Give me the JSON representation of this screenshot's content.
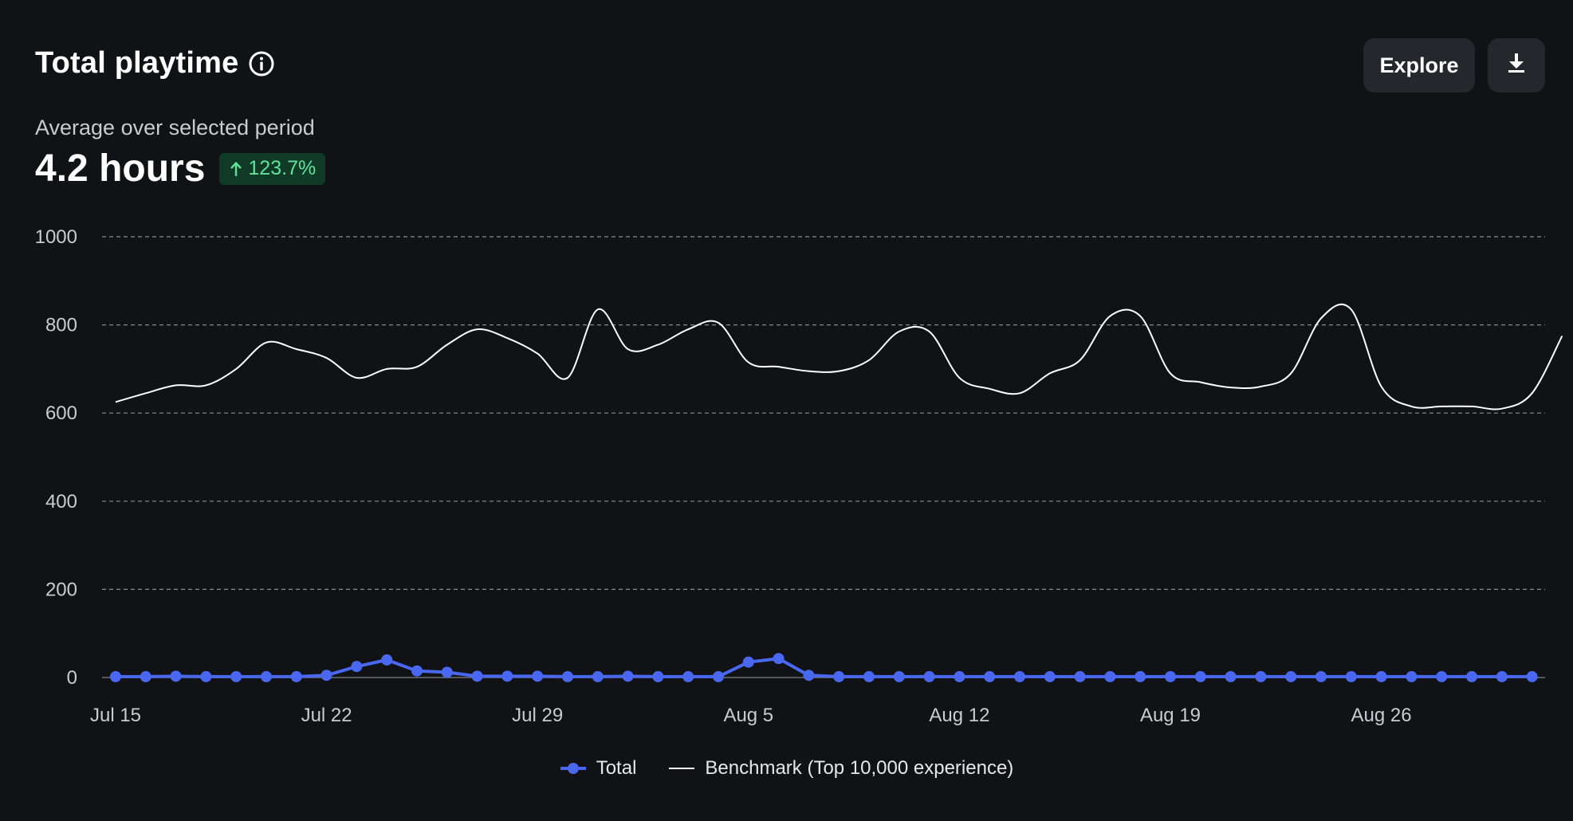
{
  "header": {
    "title": "Total playtime",
    "explore_label": "Explore",
    "subtitle": "Average over selected period",
    "metric_value": "4.2 hours",
    "change_badge": "123.7%"
  },
  "colors": {
    "background": "#111216",
    "total_series": "#4a67f0",
    "benchmark_series": "#ffffff",
    "badge_bg": "#0f3a26",
    "badge_text": "#5fe39a",
    "gridline": "#8a8c92"
  },
  "icons": {
    "info": "info-icon",
    "download": "download-icon",
    "change": "arrow-up-icon"
  },
  "legend": {
    "total": "Total",
    "benchmark": "Benchmark (Top 10,000 experience)"
  },
  "chart_data": {
    "type": "line",
    "title": "Total playtime",
    "xlabel": "",
    "ylabel": "",
    "ylim": [
      0,
      1000
    ],
    "yticks": [
      0,
      200,
      400,
      600,
      800,
      1000
    ],
    "x_tick_labels": [
      {
        "index": 0,
        "label": "Jul 15"
      },
      {
        "index": 7,
        "label": "Jul 22"
      },
      {
        "index": 14,
        "label": "Jul 29"
      },
      {
        "index": 21,
        "label": "Aug 5"
      },
      {
        "index": 28,
        "label": "Aug 12"
      },
      {
        "index": 35,
        "label": "Aug 19"
      },
      {
        "index": 42,
        "label": "Aug 26"
      }
    ],
    "grid": true,
    "legend_position": "bottom-center",
    "series": [
      {
        "name": "Total",
        "style": "line-with-markers",
        "values": [
          2,
          2,
          3,
          2,
          2,
          2,
          2,
          5,
          25,
          40,
          15,
          12,
          3,
          3,
          3,
          2,
          2,
          3,
          2,
          2,
          2,
          35,
          43,
          5,
          2,
          2,
          2,
          2,
          2,
          2,
          2,
          2,
          2,
          2,
          2,
          2,
          2,
          2,
          2,
          2,
          2,
          2,
          2,
          2,
          2,
          2,
          2,
          2
        ]
      },
      {
        "name": "Benchmark (Top 10,000 experience)",
        "style": "smooth-line",
        "values": [
          625,
          645,
          663,
          663,
          700,
          760,
          745,
          725,
          680,
          700,
          705,
          755,
          790,
          770,
          735,
          680,
          835,
          745,
          755,
          790,
          805,
          715,
          705,
          695,
          695,
          720,
          785,
          785,
          680,
          655,
          645,
          690,
          720,
          820,
          820,
          690,
          670,
          658,
          660,
          690,
          815,
          835,
          660,
          615,
          615,
          615,
          610,
          645,
          775
        ]
      }
    ]
  }
}
